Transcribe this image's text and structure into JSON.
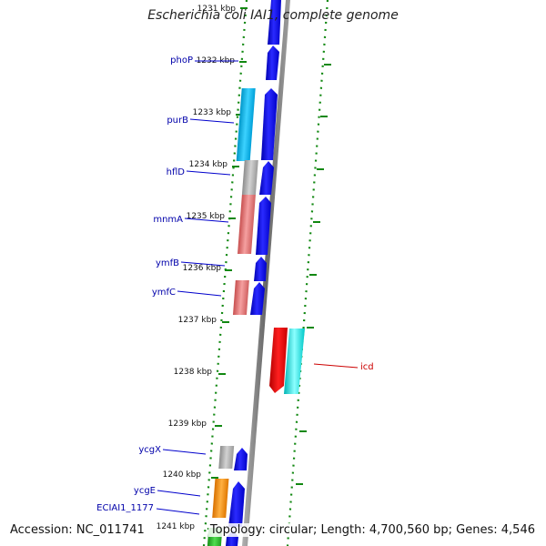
{
  "title": "Escherichia coli IAI1, complete genome",
  "footer": {
    "accession": "Accession: NC_011741",
    "topology": "Topology: circular; Length: 4,700,560 bp; Genes: 4,546"
  },
  "kbp_labels": [
    "1231 kbp",
    "1232 kbp",
    "1233 kbp",
    "1234 kbp",
    "1235 kbp",
    "1236 kbp",
    "1237 kbp",
    "1238 kbp",
    "1239 kbp",
    "1240 kbp",
    "1241 kbp"
  ],
  "gene_labels": [
    {
      "name": "phoP",
      "color": "#0000aa"
    },
    {
      "name": "purB",
      "color": "#0000aa"
    },
    {
      "name": "hflD",
      "color": "#0000aa"
    },
    {
      "name": "mnmA",
      "color": "#0000aa"
    },
    {
      "name": "ymfB",
      "color": "#0000aa"
    },
    {
      "name": "ymfC",
      "color": "#0000aa"
    },
    {
      "name": "icd",
      "color": "#cc0000"
    },
    {
      "name": "ycgX",
      "color": "#0000aa"
    },
    {
      "name": "ycgE",
      "color": "#0000aa"
    },
    {
      "name": "ECIAI1_1177",
      "color": "#0000aa"
    }
  ],
  "colors": {
    "cds_forward": "#0000ee",
    "rna_cyan": "#00b4e6",
    "gray_feature": "#a0a0a0",
    "salmon_feature": "#e07070",
    "red_feature": "#ee0000",
    "cyan_feature": "#00e0e0",
    "orange_feature": "#ff8c00",
    "green_feature": "#22bb22",
    "tick_green": "#118811",
    "backbone": "#888888"
  }
}
